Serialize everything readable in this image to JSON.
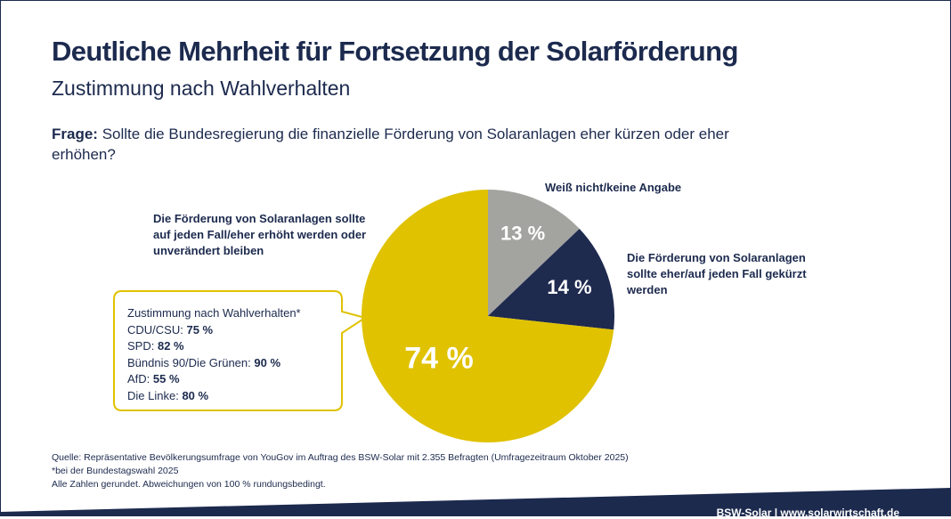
{
  "header": {
    "title": "Deutliche Mehrheit für Fortsetzung der Solarförderung",
    "subtitle": "Zustimmung nach Wahlverhalten"
  },
  "question": {
    "label": "Frage:",
    "text": "Sollte die Bundesregierung die finanzielle Förderung von Solaranlagen eher kürzen oder eher erhöhen?"
  },
  "chart_data": {
    "type": "pie",
    "categories": [
      "Weiß nicht/keine Angabe",
      "Die Förderung von Solaranlagen sollte eher/auf jeden Fall gekürzt werden",
      "Die Förderung von Solaranlagen sollte auf jeden Fall/eher erhöht werden oder unverändert bleiben"
    ],
    "values": [
      13,
      14,
      74
    ],
    "value_labels": [
      "13 %",
      "14 %",
      "74 %"
    ],
    "colors": [
      "#a3a3a0",
      "#1f2a4f",
      "#e0c200"
    ]
  },
  "callout": {
    "title": "Zustimmung nach Wahlverhalten*",
    "items": [
      {
        "party": "CDU/CSU:",
        "share": "75 %"
      },
      {
        "party": "SPD:",
        "share": "82 %"
      },
      {
        "party": "Bündnis 90/Die Grünen:",
        "share": "90 %"
      },
      {
        "party": "AfD:",
        "share": "55 %"
      },
      {
        "party": "Die Linke:",
        "share": "80 %"
      }
    ]
  },
  "footer": {
    "source": "Quelle: Repräsentative Bevölkerungsumfrage von YouGov im Auftrag des BSW-Solar mit 2.355 Befragten (Umfragezeitraum Oktober 2025)",
    "note": "*bei der Bundestagswahl 2025",
    "rounding": "Alle Zahlen gerundet. Abweichungen von 100 % rundungsbedingt.",
    "brand": "BSW-Solar | www.solarwirtschaft.de"
  }
}
